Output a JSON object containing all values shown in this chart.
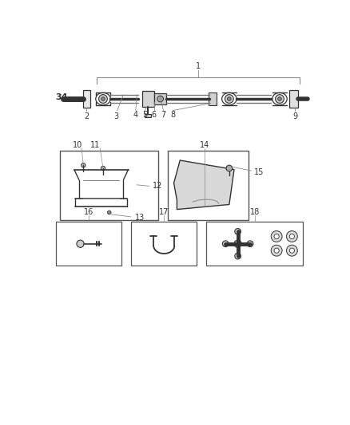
{
  "bg_color": "#ffffff",
  "line_color": "#888888",
  "dark_color": "#333333",
  "part_label_color": "#555555",
  "fig_width": 4.38,
  "fig_height": 5.33
}
